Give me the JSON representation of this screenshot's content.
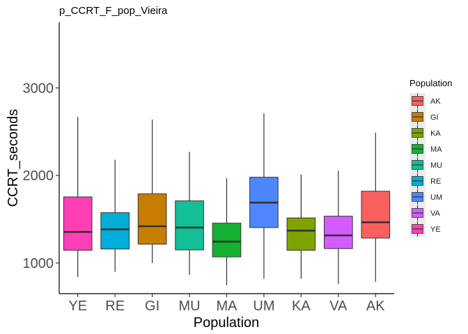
{
  "chart_data": {
    "type": "boxplot",
    "title": "p_CCRT_F_pop_Vieira",
    "xlabel": "Population",
    "ylabel": "CCRT_seconds",
    "ylim": [
      650,
      3750
    ],
    "yticks": [
      1000,
      2000,
      3000
    ],
    "grid": false,
    "legend_position": "right",
    "categories": [
      "YE",
      "RE",
      "GI",
      "MU",
      "MA",
      "UM",
      "KA",
      "VA",
      "AK"
    ],
    "boxes": [
      {
        "label": "YE",
        "whisker_low": 840,
        "q1": 1145,
        "median": 1355,
        "q3": 1755,
        "whisker_high": 2670,
        "color": "#FF3FB5"
      },
      {
        "label": "RE",
        "whisker_low": 900,
        "q1": 1160,
        "median": 1385,
        "q3": 1575,
        "whisker_high": 2180,
        "color": "#00AED9"
      },
      {
        "label": "GI",
        "whisker_low": 1000,
        "q1": 1215,
        "median": 1420,
        "q3": 1790,
        "whisker_high": 2640,
        "color": "#C77D00"
      },
      {
        "label": "MU",
        "whisker_low": 865,
        "q1": 1150,
        "median": 1405,
        "q3": 1710,
        "whisker_high": 2270,
        "color": "#14BE96"
      },
      {
        "label": "MA",
        "whisker_low": 745,
        "q1": 1070,
        "median": 1245,
        "q3": 1455,
        "whisker_high": 1970,
        "color": "#15B132"
      },
      {
        "label": "UM",
        "whisker_low": 820,
        "q1": 1405,
        "median": 1690,
        "q3": 1980,
        "whisker_high": 2710,
        "color": "#4D86FF"
      },
      {
        "label": "KA",
        "whisker_low": 820,
        "q1": 1145,
        "median": 1370,
        "q3": 1515,
        "whisker_high": 2010,
        "color": "#7FA400"
      },
      {
        "label": "VA",
        "whisker_low": 760,
        "q1": 1165,
        "median": 1315,
        "q3": 1535,
        "whisker_high": 2055,
        "color": "#D35CFF"
      },
      {
        "label": "AK",
        "whisker_low": 785,
        "q1": 1285,
        "median": 1465,
        "q3": 1820,
        "whisker_high": 2490,
        "color": "#F8605E"
      }
    ],
    "legend": {
      "title": "Population",
      "items": [
        {
          "label": "AK",
          "color": "#F8605E"
        },
        {
          "label": "GI",
          "color": "#C77D00"
        },
        {
          "label": "KA",
          "color": "#7FA400"
        },
        {
          "label": "MA",
          "color": "#15B132"
        },
        {
          "label": "MU",
          "color": "#14BE96"
        },
        {
          "label": "RE",
          "color": "#00AED9"
        },
        {
          "label": "UM",
          "color": "#4D86FF"
        },
        {
          "label": "VA",
          "color": "#D35CFF"
        },
        {
          "label": "YE",
          "color": "#FF3FB5"
        }
      ]
    }
  }
}
